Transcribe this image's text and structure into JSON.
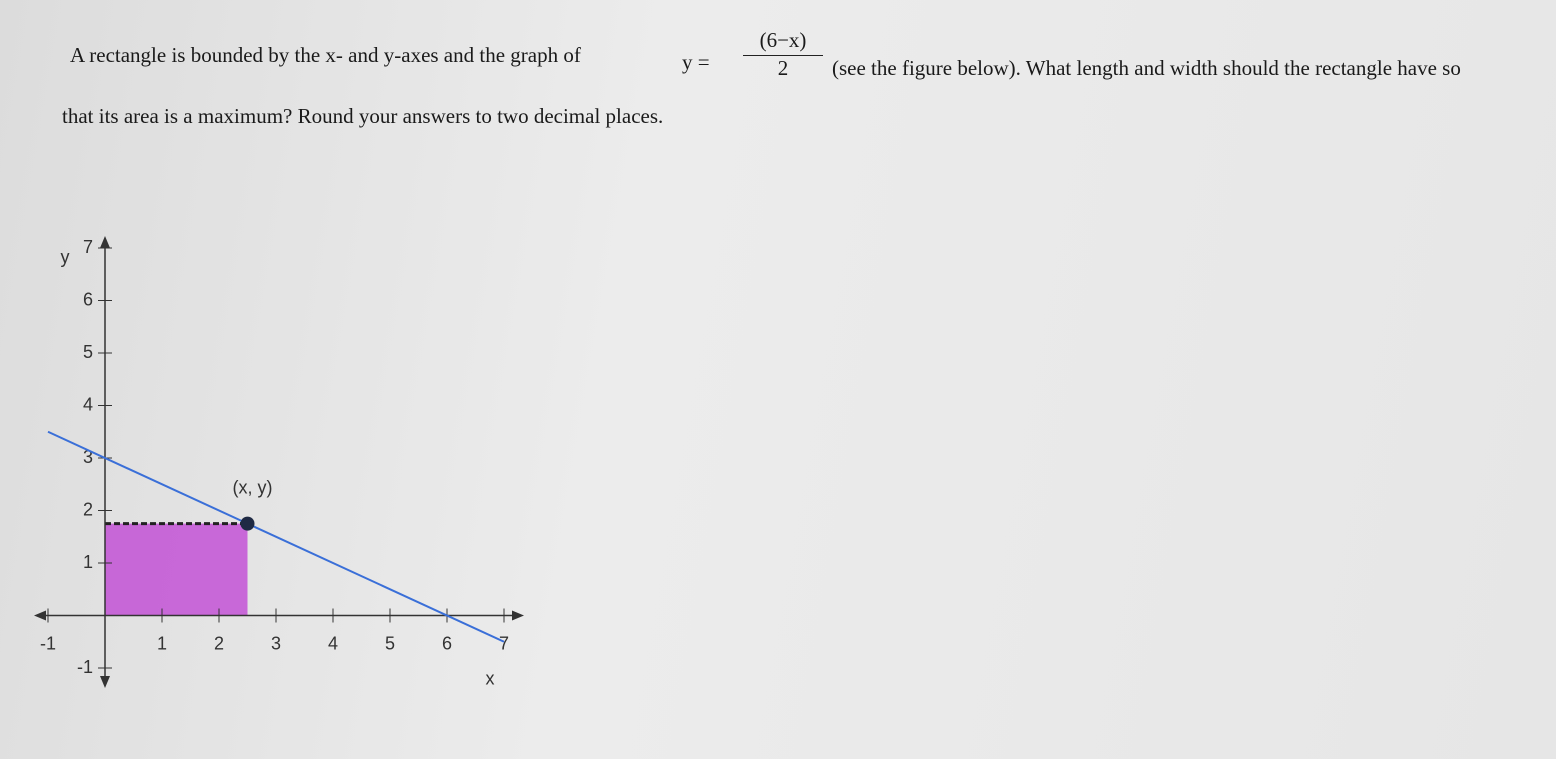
{
  "question": {
    "line1_start": "A rectangle is bounded by the x- and y-axes and the graph of",
    "formula_lhs": "y =",
    "formula_numerator": "(6−x)",
    "formula_denominator": "2",
    "line1_end": "(see the figure below). What length and width should the rectangle have so",
    "line2": "that its area is a maximum? Round your answers to two decimal places."
  },
  "graph": {
    "x_label": "x",
    "y_label": "y",
    "xlim": [
      -1,
      7
    ],
    "ylim": [
      -1,
      7
    ],
    "xticks": [
      -1,
      1,
      2,
      3,
      4,
      5,
      6,
      7
    ],
    "yticks": [
      -1,
      1,
      2,
      3,
      4,
      5,
      6,
      7
    ],
    "line": {
      "x": [
        -1,
        7
      ],
      "y": [
        3.5,
        -0.5
      ]
    },
    "point": {
      "x": 2.5,
      "y": 1.75,
      "label": "(x, y)"
    }
  }
}
